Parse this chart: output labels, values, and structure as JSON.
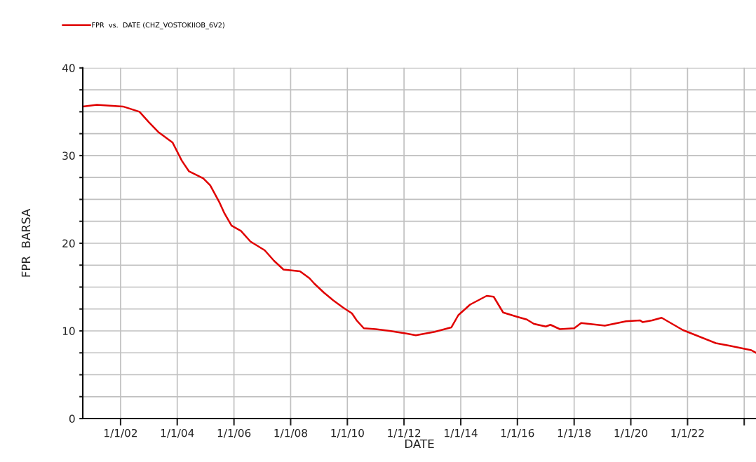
{
  "chart_data": {
    "type": "line",
    "xlabel": "DATE",
    "ylabel": "FPR  BARSA",
    "legend": "top left",
    "grid": true,
    "marker": "none",
    "line_style": "solid",
    "xlim": [
      "2000-09",
      "2024-06"
    ],
    "ylim": [
      0,
      40
    ],
    "xticks": [
      {
        "value": "2002-01-01",
        "label": "1/1/02"
      },
      {
        "value": "2004-01-01",
        "label": "1/1/04"
      },
      {
        "value": "2006-01-01",
        "label": "1/1/06"
      },
      {
        "value": "2008-01-01",
        "label": "1/1/08"
      },
      {
        "value": "2010-01-01",
        "label": "1/1/10"
      },
      {
        "value": "2012-01-01",
        "label": "1/1/12"
      },
      {
        "value": "2014-01-01",
        "label": "1/1/14"
      },
      {
        "value": "2016-01-01",
        "label": "1/1/16"
      },
      {
        "value": "2018-01-01",
        "label": "1/1/18"
      },
      {
        "value": "2020-01-01",
        "label": "1/1/20"
      },
      {
        "value": "2022-01-01",
        "label": "1/1/22"
      },
      {
        "value": "2024-01-01",
        "label": null
      }
    ],
    "yticks": [
      0,
      {
        "value": 2.5,
        "label": null
      },
      {
        "value": 5,
        "label": null
      },
      {
        "value": 7.5,
        "label": null
      },
      10,
      {
        "value": 12.5,
        "label": null
      },
      {
        "value": 15,
        "label": null
      },
      {
        "value": 17.5,
        "label": null
      },
      20,
      {
        "value": 22.5,
        "label": null
      },
      {
        "value": 25,
        "label": null
      },
      {
        "value": 27.5,
        "label": null
      },
      30,
      {
        "value": 32.5,
        "label": null
      },
      {
        "value": 35,
        "label": null
      },
      {
        "value": 37.5,
        "label": null
      },
      40
    ],
    "x": [
      "2000-09",
      "2001-03",
      "2002-02",
      "2002-09",
      "2003-01",
      "2003-05",
      "2003-11",
      "2004-03",
      "2004-06",
      "2004-12",
      "2005-03",
      "2005-07",
      "2005-09",
      "2005-12",
      "2006-04",
      "2006-08",
      "2007-02",
      "2007-06",
      "2007-10",
      "2008-05",
      "2008-09",
      "2008-11",
      "2009-03",
      "2009-07",
      "2009-11",
      "2010-03",
      "2010-05",
      "2010-08",
      "2011-01",
      "2011-07",
      "2012-02",
      "2012-06",
      "2013-02",
      "2013-09",
      "2013-12",
      "2014-05",
      "2014-12",
      "2015-03",
      "2015-07",
      "2016-01",
      "2016-05",
      "2016-08",
      "2017-01",
      "2017-03",
      "2017-07",
      "2018-01",
      "2018-04",
      "2019-02",
      "2019-11",
      "2020-05",
      "2020-06",
      "2020-10",
      "2021-02",
      "2021-11",
      "2023-01",
      "2023-07",
      "2024-04",
      "2024-06"
    ],
    "series": [
      {
        "name": "FPR  vs.  DATE (CHZ_VOSTOKIIOB_6V2)",
        "color": "#e00000",
        "values": [
          35.6,
          35.8,
          35.6,
          35.0,
          33.8,
          32.7,
          31.5,
          29.4,
          28.2,
          27.4,
          26.6,
          24.6,
          23.4,
          22.0,
          21.4,
          20.2,
          19.2,
          18.0,
          17.0,
          16.8,
          16.0,
          15.4,
          14.4,
          13.5,
          12.7,
          12.0,
          11.2,
          10.3,
          10.2,
          10.0,
          9.7,
          9.5,
          9.9,
          10.4,
          11.8,
          13.0,
          14.0,
          13.9,
          12.1,
          11.6,
          11.3,
          10.8,
          10.5,
          10.7,
          10.2,
          10.3,
          10.9,
          10.6,
          11.1,
          11.2,
          11.0,
          11.2,
          11.5,
          10.1,
          8.6,
          8.3,
          7.8,
          7.5
        ]
      }
    ]
  }
}
